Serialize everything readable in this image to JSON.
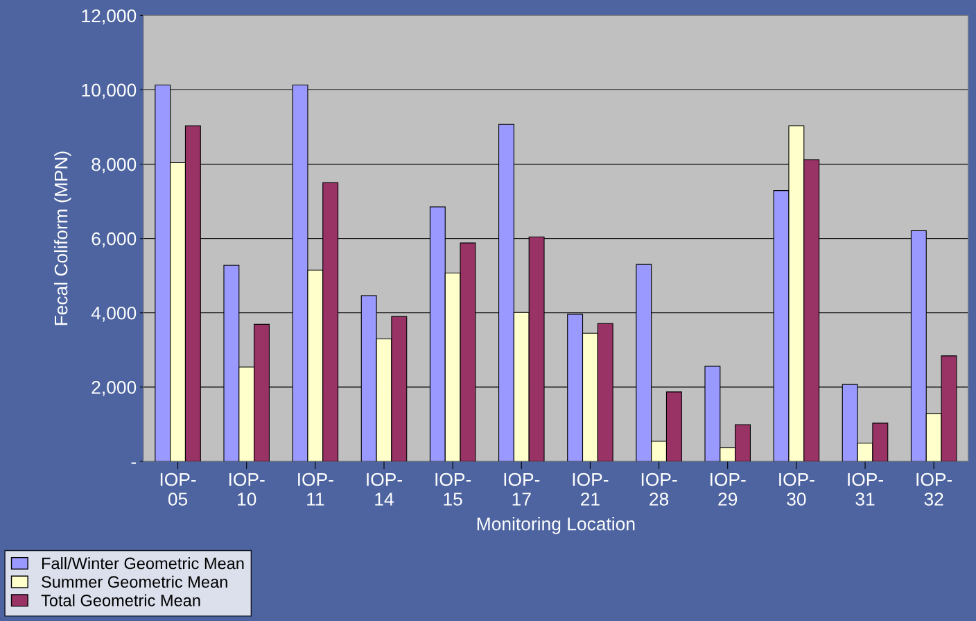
{
  "chart_data": {
    "type": "bar",
    "xlabel": "Monitoring Location",
    "ylabel": "Fecal Coliform (MPN)",
    "categories": [
      "IOP-05",
      "IOP-10",
      "IOP-11",
      "IOP-14",
      "IOP-15",
      "IOP-17",
      "IOP-21",
      "IOP-28",
      "IOP-29",
      "IOP-30",
      "IOP-31",
      "IOP-32"
    ],
    "series": [
      {
        "name": "Fall/Winter Geometric Mean",
        "color": "#9999ff",
        "values": [
          10130,
          5280,
          10130,
          4460,
          6850,
          9070,
          3960,
          5300,
          2560,
          7290,
          2070,
          6210
        ]
      },
      {
        "name": "Summer Geometric Mean",
        "color": "#ffffcc",
        "values": [
          8040,
          2540,
          5150,
          3300,
          5070,
          4010,
          3450,
          540,
          370,
          9030,
          490,
          1290
        ]
      },
      {
        "name": "Total Geometric Mean",
        "color": "#993366",
        "values": [
          9030,
          3690,
          7500,
          3900,
          5880,
          6040,
          3710,
          1870,
          990,
          8120,
          1030,
          2840
        ]
      }
    ],
    "ylim": [
      0,
      12000
    ],
    "yticks": [
      {
        "value": 0,
        "label": "-"
      },
      {
        "value": 2000,
        "label": "2,000"
      },
      {
        "value": 4000,
        "label": "4,000"
      },
      {
        "value": 6000,
        "label": "6,000"
      },
      {
        "value": 8000,
        "label": "8,000"
      },
      {
        "value": 10000,
        "label": "10,000"
      },
      {
        "value": 12000,
        "label": "12,000"
      }
    ],
    "grid": "y",
    "legend": "bottom left"
  }
}
